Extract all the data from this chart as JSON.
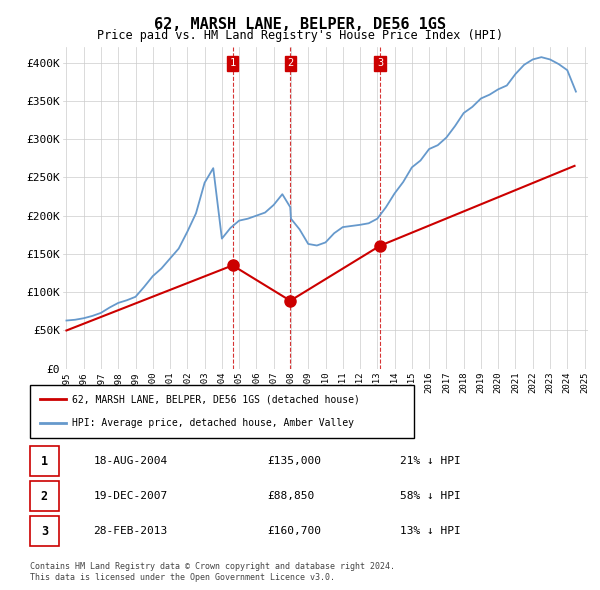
{
  "title": "62, MARSH LANE, BELPER, DE56 1GS",
  "subtitle": "Price paid vs. HM Land Registry's House Price Index (HPI)",
  "legend_line1": "62, MARSH LANE, BELPER, DE56 1GS (detached house)",
  "legend_line2": "HPI: Average price, detached house, Amber Valley",
  "footer1": "Contains HM Land Registry data © Crown copyright and database right 2024.",
  "footer2": "This data is licensed under the Open Government Licence v3.0.",
  "sale_color": "#cc0000",
  "hpi_color": "#6699cc",
  "vline_color": "#cc0000",
  "ylim": [
    0,
    420000
  ],
  "yticks": [
    0,
    50000,
    100000,
    150000,
    200000,
    250000,
    300000,
    350000,
    400000
  ],
  "ytick_labels": [
    "£0",
    "£50K",
    "£100K",
    "£150K",
    "£200K",
    "£250K",
    "£300K",
    "£350K",
    "£400K"
  ],
  "transactions": [
    {
      "label": "1",
      "date": "18-AUG-2004",
      "price": 135000,
      "pct": "21%",
      "x_year": 2004.62
    },
    {
      "label": "2",
      "date": "19-DEC-2007",
      "price": 88850,
      "pct": "58%",
      "x_year": 2007.96
    },
    {
      "label": "3",
      "date": "28-FEB-2013",
      "price": 160700,
      "pct": "13%",
      "x_year": 2013.16
    }
  ],
  "hpi_data_years": [
    1995.0,
    1995.5,
    1996.0,
    1996.5,
    1997.0,
    1997.5,
    1998.0,
    1998.5,
    1999.0,
    1999.5,
    2000.0,
    2000.5,
    2001.0,
    2001.5,
    2002.0,
    2002.5,
    2003.0,
    2003.5,
    2004.0,
    2004.5,
    2005.0,
    2005.5,
    2006.0,
    2006.5,
    2007.0,
    2007.5,
    2007.96,
    2008.0,
    2008.5,
    2009.0,
    2009.5,
    2010.0,
    2010.5,
    2011.0,
    2011.5,
    2012.0,
    2012.5,
    2013.0,
    2013.5,
    2014.0,
    2014.5,
    2015.0,
    2015.5,
    2016.0,
    2016.5,
    2017.0,
    2017.5,
    2018.0,
    2018.5,
    2019.0,
    2019.5,
    2020.0,
    2020.5,
    2021.0,
    2021.5,
    2022.0,
    2022.5,
    2023.0,
    2023.5,
    2024.0,
    2024.5
  ],
  "hpi_data_values": [
    63000,
    64000,
    66000,
    69000,
    73000,
    80000,
    86000,
    89500,
    94000,
    107000,
    121000,
    131000,
    144000,
    157000,
    179000,
    203000,
    243000,
    262000,
    170000,
    184000,
    193500,
    196000,
    200000,
    204000,
    214000,
    228000,
    211000,
    196000,
    182000,
    163000,
    161000,
    165000,
    177000,
    185000,
    186500,
    188000,
    190000,
    196000,
    211000,
    229000,
    244000,
    263000,
    272000,
    287000,
    292000,
    302000,
    317000,
    334000,
    342000,
    353000,
    358000,
    365000,
    370000,
    385000,
    397000,
    404000,
    407000,
    404000,
    398000,
    390000,
    362000
  ],
  "sale_data_years": [
    1995.0,
    2004.62,
    2007.96,
    2013.16,
    2024.42
  ],
  "sale_data_values": [
    50000,
    135000,
    88850,
    160700,
    265000
  ],
  "xticks": [
    1995,
    1996,
    1997,
    1998,
    1999,
    2000,
    2001,
    2002,
    2003,
    2004,
    2005,
    2006,
    2007,
    2008,
    2009,
    2010,
    2011,
    2012,
    2013,
    2014,
    2015,
    2016,
    2017,
    2018,
    2019,
    2020,
    2021,
    2022,
    2023,
    2024,
    2025
  ],
  "xlim": [
    1994.8,
    2025.2
  ]
}
